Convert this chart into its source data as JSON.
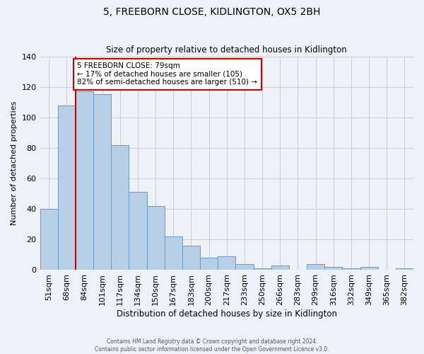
{
  "title": "5, FREEBORN CLOSE, KIDLINGTON, OX5 2BH",
  "subtitle": "Size of property relative to detached houses in Kidlington",
  "xlabel": "Distribution of detached houses by size in Kidlington",
  "ylabel": "Number of detached properties",
  "bar_labels": [
    "51sqm",
    "68sqm",
    "84sqm",
    "101sqm",
    "117sqm",
    "134sqm",
    "150sqm",
    "167sqm",
    "183sqm",
    "200sqm",
    "217sqm",
    "233sqm",
    "250sqm",
    "266sqm",
    "283sqm",
    "299sqm",
    "316sqm",
    "332sqm",
    "349sqm",
    "365sqm",
    "382sqm"
  ],
  "bar_values": [
    40,
    108,
    117,
    115,
    82,
    51,
    42,
    22,
    16,
    8,
    9,
    4,
    1,
    3,
    0,
    4,
    2,
    1,
    2,
    0,
    1
  ],
  "bar_color": "#b8cfe8",
  "bar_edge_color": "#6699cc",
  "vline_color": "#cc0000",
  "vline_pos": 2,
  "annotation_text": "5 FREEBORN CLOSE: 79sqm\n← 17% of detached houses are smaller (105)\n82% of semi-detached houses are larger (510) →",
  "annotation_box_color": "#ffffff",
  "annotation_box_edge_color": "#cc0000",
  "ylim": [
    0,
    140
  ],
  "yticks": [
    0,
    20,
    40,
    60,
    80,
    100,
    120,
    140
  ],
  "grid_color": "#cccccc",
  "bg_color": "#eef2f8",
  "footer_line1": "Contains HM Land Registry data © Crown copyright and database right 2024.",
  "footer_line2": "Contains public sector information licensed under the Open Government Licence v3.0."
}
